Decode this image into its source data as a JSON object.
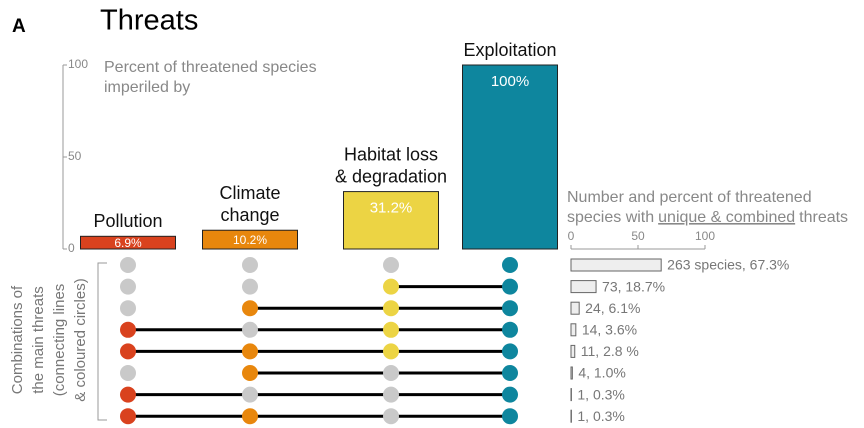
{
  "chart_data": [
    {
      "type": "bar",
      "panel": "A",
      "title": "Threats",
      "y_label_lines": [
        "Percent of threatened species",
        "imperiled by"
      ],
      "categories": [
        [
          "Pollution"
        ],
        [
          "Climate",
          "change"
        ],
        [
          "Habitat loss",
          "& degradation"
        ],
        [
          "Exploitation"
        ]
      ],
      "values": [
        6.9,
        10.2,
        31.2,
        100
      ],
      "value_labels": [
        "6.9%",
        "10.2%",
        "31.2%",
        "100%"
      ],
      "colors": [
        "#d9421e",
        "#e8870d",
        "#ecd444",
        "#0e869e"
      ],
      "ylim": [
        0,
        100
      ],
      "yticks": [
        0,
        50,
        100
      ]
    },
    {
      "type": "matrix",
      "label_lines": [
        "Combinations of",
        "the main threats",
        "(connecting lines",
        "& coloured circles)"
      ],
      "empty_color": "#c9c9c9",
      "rows": [
        [
          false,
          false,
          false,
          true
        ],
        [
          false,
          false,
          true,
          true
        ],
        [
          false,
          true,
          true,
          true
        ],
        [
          true,
          false,
          true,
          true
        ],
        [
          true,
          true,
          true,
          true
        ],
        [
          false,
          true,
          false,
          true
        ],
        [
          true,
          false,
          false,
          true
        ],
        [
          true,
          true,
          false,
          true
        ]
      ]
    },
    {
      "type": "hbar",
      "x_label_lines": [
        "Number and percent of threatened",
        "species with"
      ],
      "x_label_underlined": "unique & combined",
      "x_label_end": "threats",
      "values": [
        67.3,
        18.7,
        6.1,
        3.6,
        2.8,
        1.0,
        0.3,
        0.3
      ],
      "value_labels": [
        "263 species, 67.3%",
        "73, 18.7%",
        "24, 6.1%",
        "14, 3.6%",
        "11, 2.8 %",
        "4, 1.0%",
        "1, 0.3%",
        "1, 0.3%"
      ],
      "color": "#eeeeee",
      "xlim": [
        0,
        100
      ],
      "xticks": [
        0,
        50,
        100
      ]
    }
  ]
}
